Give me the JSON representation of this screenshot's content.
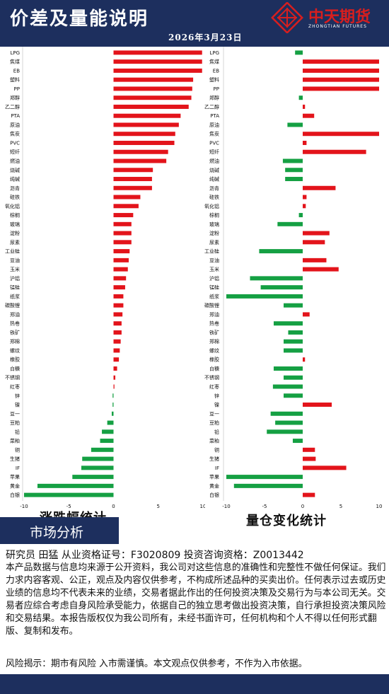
{
  "header": {
    "title": "价差及量能说明",
    "date": "2026年3月23日",
    "brand": "中天期货",
    "brand_sub": "ZHONGTIAN FUTURES"
  },
  "colors": {
    "positive": "#e3141b",
    "negative": "#15a043",
    "navy": "#1d2f5e"
  },
  "chart_data": [
    {
      "type": "bar",
      "orientation": "horizontal",
      "title": "涨跌幅统计",
      "xlim": [
        -10,
        10
      ],
      "xticks": [
        "-10",
        "-5",
        "0",
        "5",
        "10"
      ],
      "categories": [
        "LPG",
        "焦煤",
        "EB",
        "塑料",
        "PP",
        "郑醇",
        "乙二醇",
        "PTA",
        "原油",
        "焦炭",
        "PVC",
        "短纤",
        "燃油",
        "烧碱",
        "纯碱",
        "沥青",
        "硅铁",
        "氧化铝",
        "棕榈",
        "玻璃",
        "淀粉",
        "尿素",
        "工业硅",
        "豆油",
        "玉米",
        "沪铝",
        "锰硅",
        "纸浆",
        "碳酸锂",
        "郑油",
        "热卷",
        "铁矿",
        "郑棉",
        "螺纹",
        "橡胶",
        "白糖",
        "不锈钢",
        "红枣",
        "锌",
        "镍",
        "豆一",
        "豆粕",
        "铅",
        "菜粕",
        "铜",
        "生猪",
        "IF",
        "苹果",
        "黄金",
        "白银"
      ],
      "values": [
        9.9,
        9.9,
        9.9,
        8.9,
        8.8,
        8.7,
        8.4,
        7.5,
        7.3,
        6.9,
        6.8,
        6.1,
        5.9,
        4.4,
        4.3,
        4.3,
        3.0,
        2.8,
        2.2,
        2.0,
        2.0,
        2.0,
        1.8,
        1.7,
        1.6,
        1.4,
        1.3,
        1.1,
        1.1,
        1.0,
        0.9,
        0.9,
        0.8,
        0.7,
        0.6,
        0.4,
        0.2,
        0.1,
        -0.1,
        -0.1,
        -0.2,
        -0.7,
        -1.3,
        -1.5,
        -2.5,
        -3.5,
        -3.6,
        -4.6,
        -8.5,
        -10.0
      ]
    },
    {
      "type": "bar",
      "orientation": "horizontal",
      "title": "量仓变化统计",
      "xlim": [
        -10,
        10
      ],
      "xticks": [
        "-10",
        "-5",
        "0",
        "5",
        "10"
      ],
      "categories": [
        "LPG",
        "焦煤",
        "EB",
        "塑料",
        "PP",
        "郑醇",
        "乙二醇",
        "PTA",
        "原油",
        "焦炭",
        "PVC",
        "短纤",
        "燃油",
        "烧碱",
        "纯碱",
        "沥青",
        "硅铁",
        "氧化铝",
        "棕榈",
        "玻璃",
        "淀粉",
        "尿素",
        "工业硅",
        "豆油",
        "玉米",
        "沪铝",
        "锰硅",
        "纸浆",
        "碳酸锂",
        "郑油",
        "热卷",
        "铁矿",
        "郑棉",
        "螺纹",
        "橡胶",
        "白糖",
        "不锈钢",
        "红枣",
        "锌",
        "镍",
        "豆一",
        "豆粕",
        "铅",
        "菜粕",
        "铜",
        "生猪",
        "IF",
        "苹果",
        "黄金",
        "白银"
      ],
      "values": [
        -1.0,
        10.0,
        10.0,
        10.0,
        10.0,
        -0.5,
        0.3,
        1.5,
        -2.0,
        10.0,
        0.5,
        8.3,
        -2.6,
        -2.3,
        -2.3,
        4.3,
        0.5,
        0.4,
        -0.5,
        -3.3,
        3.5,
        2.9,
        -5.7,
        3.1,
        4.7,
        -6.9,
        -5.5,
        -10.0,
        -2.5,
        0.9,
        -3.8,
        -1.9,
        -2.5,
        -2.5,
        0.3,
        -3.8,
        -2.5,
        -3.9,
        -2.5,
        3.8,
        -4.2,
        -3.6,
        -4.7,
        -1.3,
        1.6,
        1.7,
        5.7,
        -10.0,
        -9.0,
        1.6
      ]
    }
  ],
  "market": {
    "label": "市场分析"
  },
  "analyst": "研究员 田猛   从业资格证号：F3020809  投资咨询资格：Z0013442",
  "disclaimer": [
    "本产品数据与信息均来源于公开资料，我公司对这些信息的准确性和完整性不做任何保证。我们力求内容客观、公正，观点及内容仅供参考，不构成所述品种的买卖出价。任何表示过去或历史业绩的信息均不代表未来的业绩，交易者据此作出的任何投资决策及交易行为与本公司无关。交易者应综合考虑自身风险承受能力，依据自己的独立思考做出投资决策，自行承担投资决策风险和交易结果。本报告版权仅为我公司所有，未经书面许可，任何机构和个人不得以任何形式翻版、复制和发布。",
    "风险揭示：期市有风险 入市需谨慎。本文观点仅供参考，不作为入市依据。"
  ]
}
